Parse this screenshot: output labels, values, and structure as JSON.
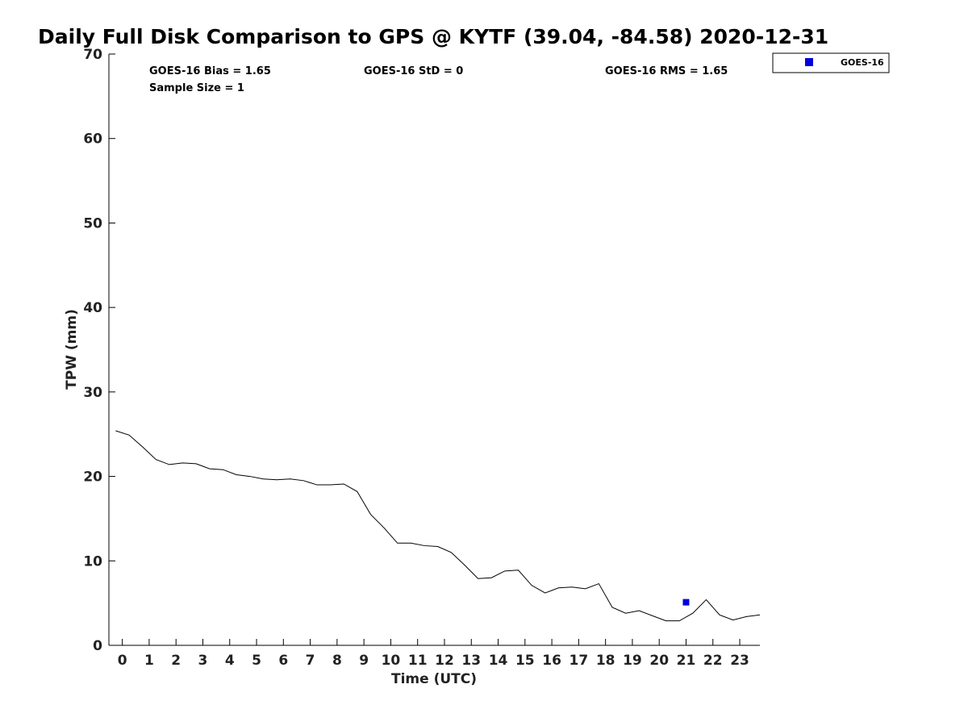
{
  "chart_data": {
    "type": "line",
    "title": "Daily Full Disk Comparison to GPS @ KYTF (39.04, -84.58) 2020-12-31",
    "xlabel": "Time (UTC)",
    "ylabel": "TPW (mm)",
    "xlim": [
      -0.5,
      23.75
    ],
    "ylim": [
      0,
      70
    ],
    "x_ticks": [
      0,
      1,
      2,
      3,
      4,
      5,
      6,
      7,
      8,
      9,
      10,
      11,
      12,
      13,
      14,
      15,
      16,
      17,
      18,
      19,
      20,
      21,
      22,
      23
    ],
    "y_ticks": [
      0,
      10,
      20,
      30,
      40,
      50,
      60,
      70
    ],
    "grid": false,
    "legend_position": "top-right, outside plot",
    "stats": {
      "bias": "GOES-16 Bias = 1.65",
      "sample_size": "Sample Size = 1",
      "std": "GOES-16 StD = 0",
      "rms": "GOES-16 RMS = 1.65"
    },
    "series": [
      {
        "kind": "line",
        "color": "#000000",
        "x": [
          -0.25,
          0.25,
          0.75,
          1.25,
          1.75,
          2.25,
          2.75,
          3.25,
          3.75,
          4.25,
          4.75,
          5.25,
          5.75,
          6.25,
          6.75,
          7.25,
          7.75,
          8.25,
          8.75,
          9.25,
          9.75,
          10.25,
          10.75,
          11.25,
          11.75,
          12.25,
          12.75,
          13.25,
          13.75,
          14.25,
          14.75,
          15.25,
          15.75,
          16.25,
          16.75,
          17.25,
          17.75,
          18.25,
          18.75,
          19.25,
          19.75,
          20.25,
          20.75,
          21.25,
          21.75,
          22.25,
          22.75,
          23.25,
          23.75
        ],
        "values": [
          25.4,
          24.9,
          23.5,
          22.0,
          21.4,
          21.6,
          21.5,
          20.9,
          20.8,
          20.2,
          20.0,
          19.7,
          19.6,
          19.7,
          19.5,
          19.0,
          19.0,
          19.1,
          18.2,
          15.5,
          13.9,
          12.1,
          12.1,
          11.8,
          11.7,
          11.0,
          9.5,
          7.9,
          8.0,
          8.8,
          8.9,
          7.1,
          6.2,
          6.8,
          6.9,
          6.7,
          7.3,
          4.5,
          3.8,
          4.1,
          3.5,
          2.9,
          2.9,
          3.8,
          5.4,
          3.6,
          3.0,
          3.4,
          3.6
        ]
      },
      {
        "name": "GOES-16",
        "kind": "scatter",
        "marker": "square",
        "color": "#0000dd",
        "x": [
          21.0
        ],
        "values": [
          5.1
        ]
      }
    ]
  }
}
